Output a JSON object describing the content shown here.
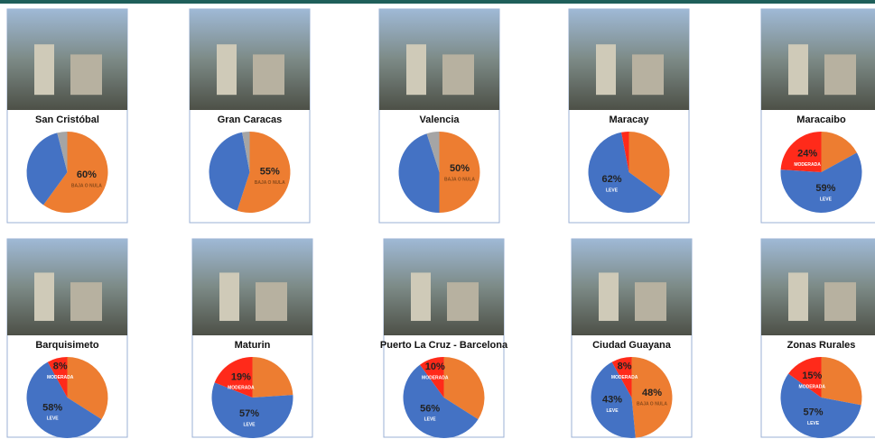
{
  "chart_data": [
    {
      "type": "pie",
      "title": "San Cristóbal",
      "categories": [
        "BAJA O NULA",
        null,
        null
      ],
      "values": [
        60,
        36,
        4
      ],
      "value_labels": [
        "60%",
        null,
        null
      ],
      "colors": [
        "#ed7d31",
        "#4472c4",
        "#a5a5a5"
      ]
    },
    {
      "type": "pie",
      "title": "Gran Caracas",
      "categories": [
        "BAJA O NULA",
        null,
        null
      ],
      "values": [
        55,
        42,
        3
      ],
      "value_labels": [
        "55%",
        null,
        null
      ],
      "colors": [
        "#ed7d31",
        "#4472c4",
        "#a5a5a5"
      ]
    },
    {
      "type": "pie",
      "title": "Valencia",
      "categories": [
        "BAJA O NULA",
        null,
        null
      ],
      "values": [
        50,
        45,
        5
      ],
      "value_labels": [
        "50%",
        null,
        null
      ],
      "colors": [
        "#ed7d31",
        "#4472c4",
        "#a5a5a5"
      ]
    },
    {
      "type": "pie",
      "title": "Maracay",
      "categories": [
        null,
        "LEVE",
        null
      ],
      "values": [
        35,
        62,
        3
      ],
      "value_labels": [
        null,
        "62%",
        null
      ],
      "colors": [
        "#ed7d31",
        "#4472c4",
        "#ff2a1a"
      ]
    },
    {
      "type": "pie",
      "title": "Maracaibo",
      "categories": [
        null,
        "LEVE",
        "MODERADA"
      ],
      "values": [
        17,
        59,
        24
      ],
      "value_labels": [
        null,
        "59%",
        "24%"
      ],
      "colors": [
        "#ed7d31",
        "#4472c4",
        "#ff2a1a"
      ]
    },
    {
      "type": "pie",
      "title": "Barquisimeto",
      "categories": [
        null,
        "LEVE",
        "MODERADA"
      ],
      "values": [
        34,
        58,
        8
      ],
      "value_labels": [
        null,
        "58%",
        "8%"
      ],
      "colors": [
        "#ed7d31",
        "#4472c4",
        "#ff2a1a"
      ]
    },
    {
      "type": "pie",
      "title": "Maturin",
      "categories": [
        null,
        "LEVE",
        "MODERADA"
      ],
      "values": [
        24,
        57,
        19
      ],
      "value_labels": [
        null,
        "57%",
        "19%"
      ],
      "colors": [
        "#ed7d31",
        "#4472c4",
        "#ff2a1a"
      ]
    },
    {
      "type": "pie",
      "title": "Puerto La Cruz - Barcelona",
      "categories": [
        null,
        "LEVE",
        "MODERADA"
      ],
      "values": [
        34,
        56,
        10
      ],
      "value_labels": [
        null,
        "56%",
        "10%"
      ],
      "colors": [
        "#ed7d31",
        "#4472c4",
        "#ff2a1a"
      ]
    },
    {
      "type": "pie",
      "title": "Ciudad Guayana",
      "categories": [
        "BAJA O NULA",
        "LEVE",
        "MODERADA"
      ],
      "values": [
        48,
        43,
        8
      ],
      "value_labels": [
        "48%",
        "43%",
        "8%"
      ],
      "colors": [
        "#ed7d31",
        "#4472c4",
        "#ff2a1a"
      ]
    },
    {
      "type": "pie",
      "title": "Zonas Rurales",
      "categories": [
        null,
        "LEVE",
        "MODERADA"
      ],
      "values": [
        28,
        57,
        15
      ],
      "value_labels": [
        null,
        "57%",
        "15%"
      ],
      "colors": [
        "#ed7d31",
        "#4472c4",
        "#ff2a1a"
      ]
    }
  ]
}
